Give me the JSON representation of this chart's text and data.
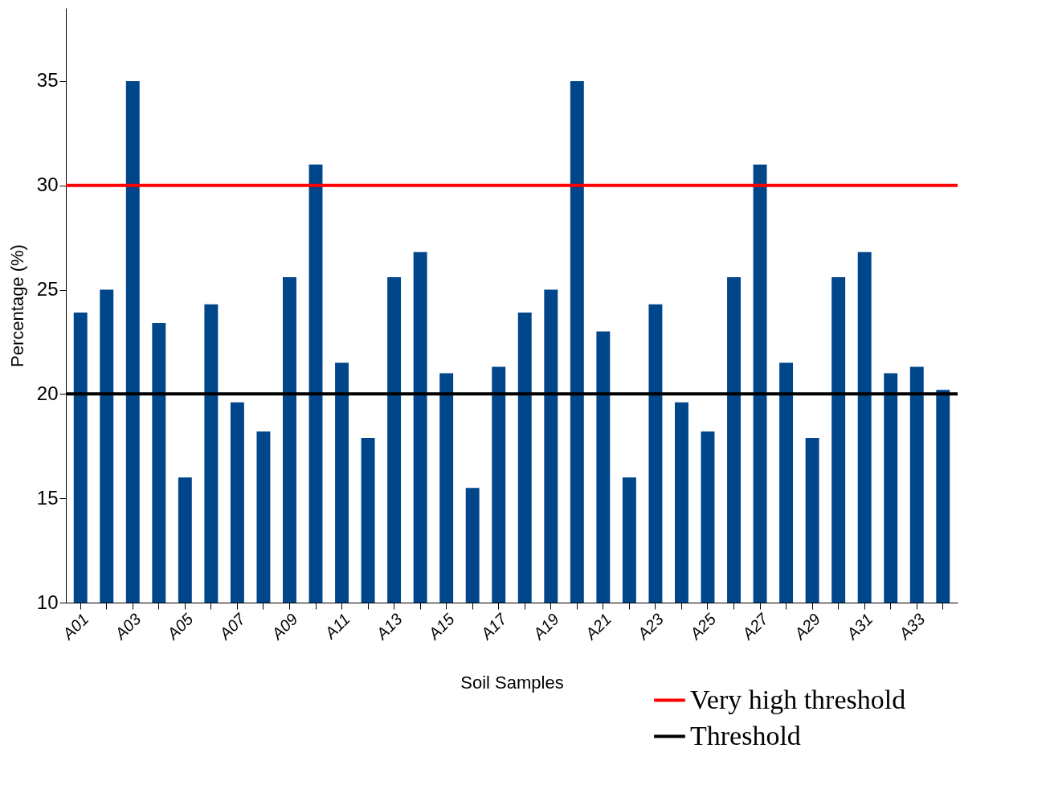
{
  "chart_data": {
    "type": "bar",
    "xlabel": "Soil Samples",
    "ylabel": "Percentage (%)",
    "categories": [
      "A01",
      null,
      "A03",
      null,
      "A05",
      null,
      "A07",
      null,
      "A09",
      null,
      "A11",
      null,
      "A13",
      null,
      "A15",
      null,
      "A17",
      null,
      "A19",
      null,
      "A21",
      null,
      "A23",
      null,
      "A25",
      null,
      "A27",
      null,
      "A29",
      null,
      "A31",
      null,
      "A33",
      null
    ],
    "values": [
      23.9,
      25.0,
      35.0,
      23.4,
      16.0,
      24.3,
      19.6,
      18.2,
      25.6,
      31.0,
      21.5,
      17.9,
      25.6,
      26.8,
      21.0,
      15.5,
      21.3,
      23.9,
      25.0,
      35.0,
      23.0,
      16.0,
      24.3,
      19.6,
      18.2,
      25.6,
      31.0,
      21.5,
      17.9,
      25.6,
      26.8,
      21.0,
      21.3,
      20.2
    ],
    "color": "#00468b",
    "ylim": [
      10,
      38.5
    ],
    "yticks": [
      10,
      15,
      20,
      25,
      30,
      35
    ],
    "grid": false,
    "legend": "bottom right",
    "ref_lines": [
      {
        "axis": "y",
        "value": 30,
        "label": "Very high threshold",
        "color": "#ff0000"
      },
      {
        "axis": "y",
        "value": 20,
        "label": "Threshold",
        "color": "#000000"
      }
    ]
  }
}
